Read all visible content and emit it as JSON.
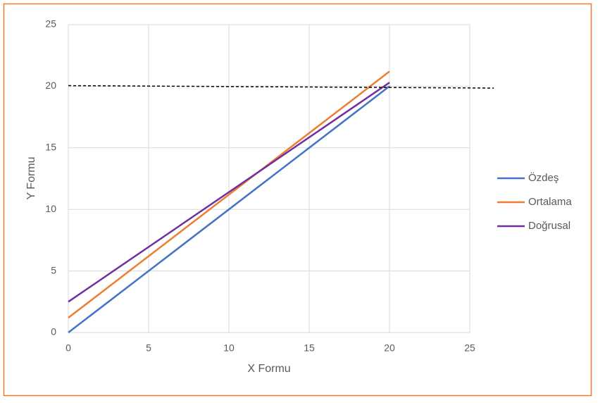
{
  "chart_data": {
    "type": "line",
    "xlabel": "X Formu",
    "ylabel": "Y Formu",
    "xlim": [
      0,
      25
    ],
    "xticks": [
      0,
      5,
      10,
      15,
      20,
      25
    ],
    "ylim": [
      0,
      25
    ],
    "yticks": [
      0,
      5,
      10,
      15,
      20,
      25
    ],
    "grid": true,
    "legend": "right",
    "series": [
      {
        "name": "Özdeş",
        "color": "#4472c4",
        "x": [
          0,
          20
        ],
        "values": [
          0,
          20
        ]
      },
      {
        "name": "Ortalama",
        "color": "#ed7d31",
        "x": [
          0,
          20
        ],
        "values": [
          1.2,
          21.2
        ]
      },
      {
        "name": "Doğrusal",
        "color": "#7030a0",
        "x": [
          0,
          20
        ],
        "values": [
          2.5,
          20.3
        ]
      }
    ],
    "reference_line": {
      "x": [
        0,
        26.5
      ],
      "values": [
        20.05,
        19.85
      ],
      "color": "#000000"
    }
  }
}
